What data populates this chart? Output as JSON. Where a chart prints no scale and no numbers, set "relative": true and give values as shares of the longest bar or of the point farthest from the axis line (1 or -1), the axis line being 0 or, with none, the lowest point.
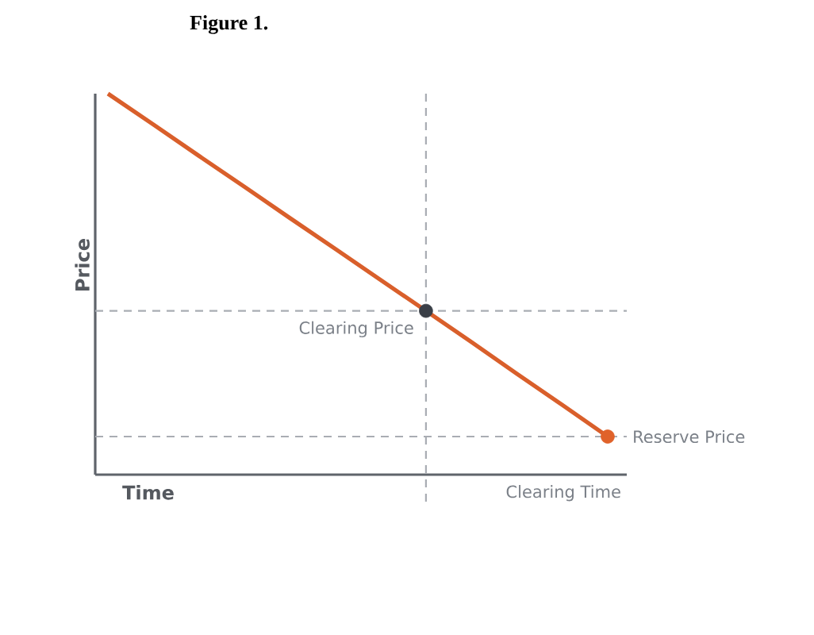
{
  "chart_data": {
    "type": "line",
    "title": "Figure 1.",
    "xlabel": "Time",
    "ylabel": "Price",
    "relative": true,
    "categories": [
      null,
      null,
      null,
      null,
      null,
      null,
      null,
      null,
      null,
      null,
      null,
      null
    ],
    "series": [
      {
        "color": "#d95f2b",
        "values": [
          1,
          0.919,
          0.837,
          0.756,
          0.674,
          0.593,
          0.511,
          0.43,
          0.348,
          0.265,
          0.183,
          0.1
        ],
        "colors": [
          null,
          null,
          null,
          null,
          null,
          null,
          null,
          "#3a3f47",
          null,
          null,
          null,
          "#e0622a"
        ]
      }
    ],
    "annotations": [
      "Clearing Time"
    ],
    "ref_lines": [
      {
        "axis": "y",
        "value": 0.43,
        "label": "Clearing Price",
        "color": "#a9adb3",
        "line_style": "dashed"
      },
      {
        "axis": "y",
        "value": 0.1,
        "label": "Reserve Price",
        "color": "#a9adb3",
        "line_style": "dashed"
      }
    ]
  }
}
